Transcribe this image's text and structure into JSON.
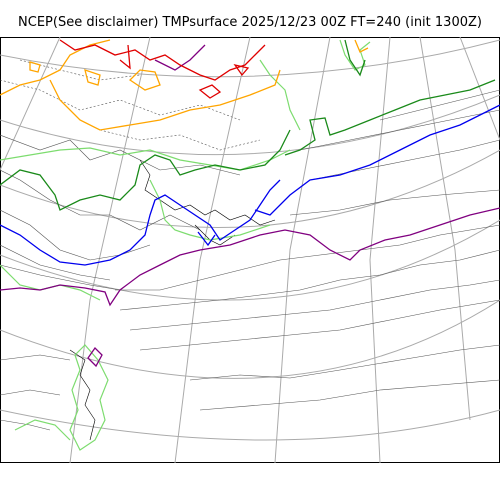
{
  "title": "NCEP(See disclaimer) TMPsurface 2025/12/23 00Z FT=240 (init 1300Z)",
  "map": {
    "variable": "TMPsurface",
    "colors": {
      "graticule": "#aaaaaa",
      "coast": "#000000",
      "contour_gray": "#555555",
      "light_green": "#7ddc6f",
      "dark_green": "#1a8a1a",
      "blue": "#0000ee",
      "purple": "#800080",
      "orange": "#ffa500",
      "red": "#e00000"
    }
  }
}
